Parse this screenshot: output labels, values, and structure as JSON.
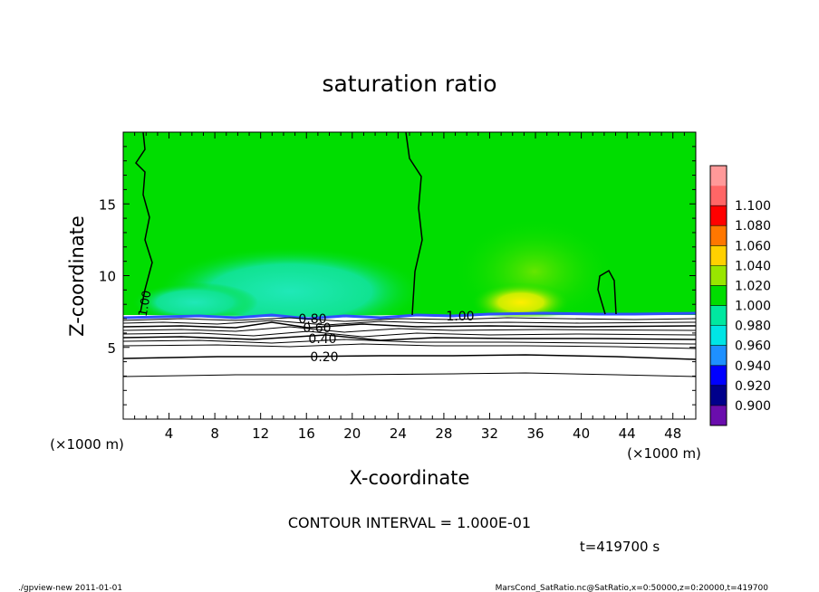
{
  "chart_data": {
    "type": "heatmap",
    "title": "saturation ratio",
    "xlabel": "X-coordinate",
    "ylabel": "Z-coordinate",
    "x_unit": "(×1000 m)",
    "y_unit": "(×1000 m)",
    "xlim": [
      0,
      50
    ],
    "ylim": [
      0,
      20
    ],
    "x_ticks": [
      "4",
      "8",
      "12",
      "16",
      "20",
      "24",
      "28",
      "32",
      "36",
      "40",
      "44",
      "48"
    ],
    "y_ticks": [
      "5",
      "10",
      "15"
    ],
    "contour_labels": [
      "1.00",
      "1.00",
      "0.80",
      "0.60",
      "0.40",
      "0.20"
    ],
    "contour_interval_text": "CONTOUR INTERVAL = 1.000E-01",
    "time_text": "t=419700 s",
    "legend": {
      "placement": "right",
      "levels": [
        "0.900",
        "0.920",
        "0.940",
        "0.960",
        "0.980",
        "1.000",
        "1.020",
        "1.040",
        "1.060",
        "1.080",
        "1.100"
      ],
      "colors": [
        "#6a0dad",
        "#00008b",
        "#0000ff",
        "#1e90ff",
        "#00e5e5",
        "#00e8a0",
        "#00dd00",
        "#99e600",
        "#ffd000",
        "#ff7700",
        "#ff0000",
        "#ff6666",
        "#ff9999"
      ]
    },
    "colors": {
      "field": "#00dd00",
      "low_field": "#30e8b0",
      "high_field": "#ffee00",
      "inversion": "#3050ff"
    }
  },
  "footer": {
    "left": "./gpview-new   2011-01-01",
    "right": "MarsCond_SatRatio.nc@SatRatio,x=0:50000,z=0:20000,t=419700"
  }
}
